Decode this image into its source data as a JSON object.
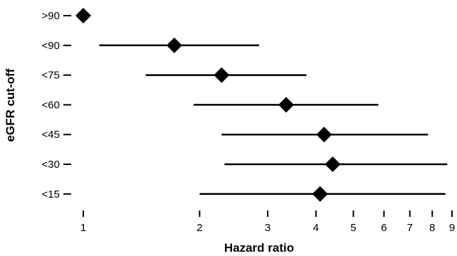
{
  "chart_data": {
    "type": "forest",
    "title": "",
    "xlabel": "Hazard ratio",
    "ylabel": "eGFR cut-off",
    "x_scale": "log",
    "xlim": [
      1,
      9
    ],
    "x_ticks": [
      1,
      2,
      3,
      4,
      5,
      6,
      7,
      8,
      9
    ],
    "grid": false,
    "legend": "none",
    "marker": "diamond",
    "color": "#000000",
    "rows": [
      {
        "label": ">90",
        "hr": 1.0,
        "lower": 1.0,
        "upper": 1.0
      },
      {
        "label": "<90",
        "hr": 1.72,
        "lower": 1.1,
        "upper": 2.85
      },
      {
        "label": "<75",
        "hr": 2.28,
        "lower": 1.45,
        "upper": 3.78
      },
      {
        "label": "<60",
        "hr": 3.35,
        "lower": 1.93,
        "upper": 5.8
      },
      {
        "label": "<45",
        "hr": 4.2,
        "lower": 2.28,
        "upper": 7.8
      },
      {
        "label": "<30",
        "hr": 4.42,
        "lower": 2.32,
        "upper": 8.75
      },
      {
        "label": "<15",
        "hr": 4.1,
        "lower": 2.0,
        "upper": 8.65
      }
    ]
  }
}
